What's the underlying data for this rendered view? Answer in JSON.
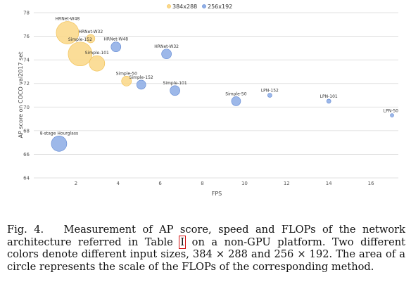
{
  "chart_data": {
    "type": "scatter",
    "xlabel": "FPS",
    "ylabel": "AP score on COCO val2017 set",
    "xlim": [
      0,
      17.3
    ],
    "ylim": [
      64,
      78
    ],
    "xticks": [
      2,
      4,
      6,
      8,
      10,
      12,
      14,
      16
    ],
    "yticks": [
      64,
      66,
      68,
      70,
      72,
      74,
      76,
      78
    ],
    "grid": true,
    "legend_position": "top",
    "series": [
      {
        "name": "384x288",
        "color": "#fbd88a",
        "stroke": "#f0bd4a",
        "points": [
          {
            "label": "HRNet-W48",
            "x": 1.6,
            "y": 76.3,
            "size": 16
          },
          {
            "label": "HRNet-W32",
            "x": 2.7,
            "y": 75.8,
            "size": 6
          },
          {
            "label": "Simple-152",
            "x": 2.2,
            "y": 74.5,
            "size": 17
          },
          {
            "label": "Simple-101",
            "x": 3.0,
            "y": 73.7,
            "size": 11
          },
          {
            "label": "Simple-50",
            "x": 4.4,
            "y": 72.2,
            "size": 7
          }
        ]
      },
      {
        "name": "256x192",
        "color": "#90aee6",
        "stroke": "#5e86d2",
        "points": [
          {
            "label": "HRNet-W48",
            "x": 3.9,
            "y": 75.1,
            "size": 7
          },
          {
            "label": "HRNet-W32",
            "x": 6.3,
            "y": 74.5,
            "size": 7
          },
          {
            "label": "Simple-152",
            "x": 5.1,
            "y": 71.9,
            "size": 6.5
          },
          {
            "label": "Simple-101",
            "x": 6.7,
            "y": 71.4,
            "size": 7
          },
          {
            "label": "Simple-50",
            "x": 9.6,
            "y": 70.5,
            "size": 6.5
          },
          {
            "label": "LPN-152",
            "x": 11.2,
            "y": 71.0,
            "size": 3
          },
          {
            "label": "LPN-101",
            "x": 14.0,
            "y": 70.5,
            "size": 3
          },
          {
            "label": "LPN-50",
            "x": 17.0,
            "y": 69.3,
            "size": 2.5
          },
          {
            "label": "8-stage Hourglass",
            "x": 1.2,
            "y": 66.9,
            "size": 11
          }
        ]
      }
    ]
  },
  "caption": {
    "prefix": "Fig. 4.",
    "text_before_ref": "Measurement of AP score, speed and FLOPs of the network architecture referred in Table ",
    "ref": "I",
    "text_after_ref": " on a non-GPU platform. Two different colors denote different input sizes, 384 × 288 and 256 × 192. The area of a circle represents the scale of the FLOPs of the corresponding method."
  }
}
